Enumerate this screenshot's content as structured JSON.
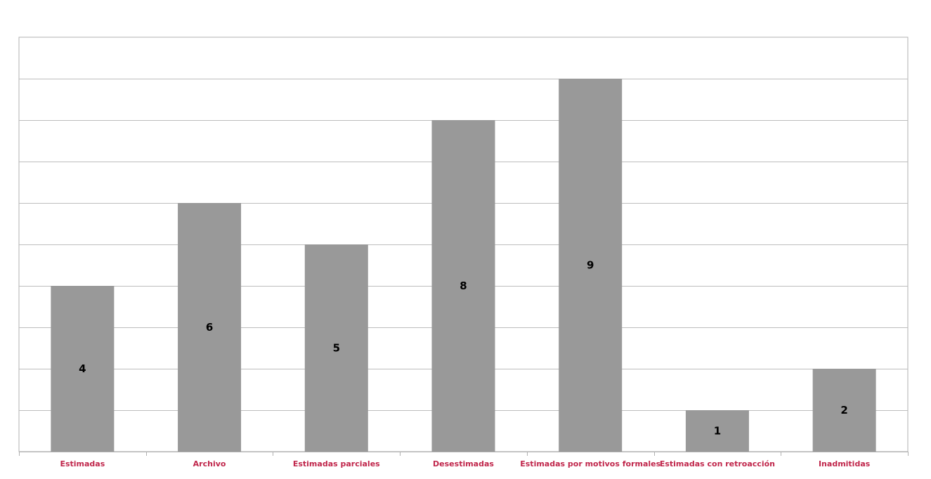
{
  "chart_data": {
    "type": "bar",
    "categories": [
      "Estimadas",
      "Archivo",
      "Estimadas parciales",
      "Desestimadas",
      "Estimadas por motivos formales",
      "Estimadas con retroacción",
      "Inadmitidas"
    ],
    "values": [
      4,
      6,
      5,
      8,
      9,
      1,
      2
    ],
    "ylim": [
      0,
      10
    ],
    "grid": true,
    "data_labels": true,
    "legend": "none",
    "colors": {
      "bar": "#999999",
      "category_label": "#c0264b",
      "gridline": "#bdbdbd",
      "frame": "#b0b0b0",
      "data_label": "#000000"
    }
  }
}
